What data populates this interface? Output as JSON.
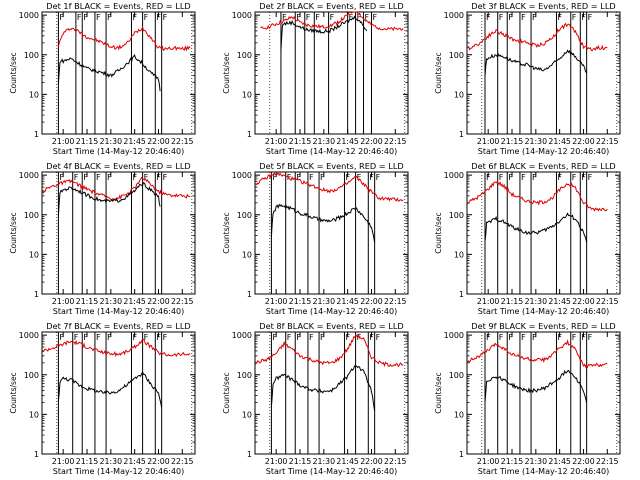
{
  "colors": {
    "events": "#000000",
    "lld": "#e00000",
    "axis": "#000000",
    "background": "#ffffff"
  },
  "shared": {
    "ylabel": "Counts/sec",
    "xlabel": "Start Time (14-May-12 20:46:40)",
    "x_tick_labels": [
      "21:00",
      "21:15",
      "21:30",
      "21:45",
      "22:00",
      "22:15"
    ],
    "y_tick_labels": [
      "1",
      "10",
      "100",
      "1000"
    ],
    "marker_label": "F"
  },
  "chart_data": [
    {
      "type": "line",
      "title": "Det 1f BLACK = Events, RED = LLD",
      "xlim": [
        "20:46:40",
        "22:23"
      ],
      "ylim": [
        1,
        1200
      ],
      "yscale": "log",
      "markers": [
        "20:57",
        "21:08",
        "21:12",
        "21:20",
        "21:27",
        "21:43",
        "21:50",
        "21:58",
        "22:02"
      ],
      "series": [
        {
          "name": "LLD",
          "color": "red",
          "x": [
            "20:57",
            "21:00",
            "21:05",
            "21:10",
            "21:15",
            "21:20",
            "21:25",
            "21:30",
            "21:35",
            "21:40",
            "21:45",
            "21:50",
            "21:55",
            "22:00",
            "22:05",
            "22:10",
            "22:15",
            "22:20"
          ],
          "y": [
            170,
            350,
            480,
            380,
            280,
            240,
            200,
            160,
            150,
            190,
            350,
            480,
            280,
            150,
            140,
            150,
            140,
            150
          ]
        },
        {
          "name": "Events",
          "color": "black",
          "x": [
            "20:57",
            "20:58",
            "21:00",
            "21:05",
            "21:10",
            "21:15",
            "21:20",
            "21:25",
            "21:30",
            "21:35",
            "21:40",
            "21:45",
            "21:50",
            "21:55",
            "22:00",
            "22:01"
          ],
          "y": [
            18,
            70,
            70,
            80,
            60,
            45,
            40,
            35,
            30,
            40,
            60,
            90,
            60,
            35,
            25,
            12
          ]
        }
      ]
    },
    {
      "type": "line",
      "title": "Det 2f BLACK = Events, RED = LLD",
      "xlim": [
        "20:46:40",
        "22:23"
      ],
      "ylim": [
        1,
        1200
      ],
      "yscale": "log",
      "markers": [
        "21:03",
        "21:12",
        "21:18",
        "21:24",
        "21:33",
        "21:45",
        "21:50",
        "21:55",
        "22:00"
      ],
      "series": [
        {
          "name": "LLD",
          "color": "red",
          "x": [
            "20:50",
            "20:55",
            "21:00",
            "21:05",
            "21:10",
            "21:15",
            "21:20",
            "21:25",
            "21:30",
            "21:35",
            "21:40",
            "21:45",
            "21:50",
            "21:55",
            "22:00",
            "22:05",
            "22:10",
            "22:15",
            "22:20"
          ],
          "y": [
            450,
            500,
            600,
            700,
            900,
            650,
            560,
            520,
            500,
            560,
            700,
            1000,
            1400,
            800,
            560,
            480,
            440,
            440,
            460
          ]
        },
        {
          "name": "Events",
          "color": "black",
          "x": [
            "21:03",
            "21:04",
            "21:10",
            "21:15",
            "21:20",
            "21:25",
            "21:30",
            "21:35",
            "21:40",
            "21:45",
            "21:50",
            "21:55",
            "21:57"
          ],
          "y": [
            120,
            600,
            650,
            500,
            420,
            400,
            380,
            420,
            550,
            700,
            900,
            550,
            400
          ]
        }
      ]
    },
    {
      "type": "line",
      "title": "Det 3f BLACK = Events, RED = LLD",
      "xlim": [
        "20:46:40",
        "22:23"
      ],
      "ylim": [
        1,
        1200
      ],
      "yscale": "log",
      "markers": [
        "20:58",
        "21:06",
        "21:12",
        "21:20",
        "21:27",
        "21:43",
        "21:52",
        "21:58",
        "22:02"
      ],
      "series": [
        {
          "name": "LLD",
          "color": "red",
          "x": [
            "20:47",
            "20:55",
            "21:00",
            "21:05",
            "21:10",
            "21:15",
            "21:20",
            "21:25",
            "21:30",
            "21:35",
            "21:40",
            "21:45",
            "21:50",
            "21:55",
            "22:00",
            "22:05",
            "22:10",
            "22:15"
          ],
          "y": [
            140,
            200,
            300,
            400,
            320,
            250,
            220,
            200,
            170,
            190,
            260,
            450,
            600,
            380,
            160,
            140,
            150,
            150
          ]
        },
        {
          "name": "Events",
          "color": "black",
          "x": [
            "20:58",
            "20:59",
            "21:05",
            "21:10",
            "21:15",
            "21:20",
            "21:25",
            "21:30",
            "21:35",
            "21:40",
            "21:45",
            "21:50",
            "21:55",
            "22:00",
            "22:02"
          ],
          "y": [
            30,
            80,
            100,
            90,
            70,
            60,
            55,
            45,
            40,
            55,
            80,
            130,
            90,
            50,
            35
          ]
        }
      ]
    },
    {
      "type": "line",
      "title": "Det 4f BLACK = Events, RED = LLD",
      "xlim": [
        "20:46:40",
        "22:23"
      ],
      "ylim": [
        1,
        1200
      ],
      "yscale": "log",
      "markers": [
        "20:57",
        "21:06",
        "21:12",
        "21:20",
        "21:27",
        "21:43",
        "21:50",
        "21:58",
        "22:02"
      ],
      "series": [
        {
          "name": "LLD",
          "color": "red",
          "x": [
            "20:47",
            "20:50",
            "20:55",
            "21:00",
            "21:05",
            "21:10",
            "21:15",
            "21:20",
            "21:25",
            "21:30",
            "21:35",
            "21:40",
            "21:45",
            "21:50",
            "21:55",
            "22:00",
            "22:05",
            "22:10",
            "22:15",
            "22:20"
          ],
          "y": [
            380,
            460,
            560,
            650,
            700,
            560,
            440,
            360,
            300,
            260,
            270,
            330,
            480,
            850,
            600,
            380,
            320,
            310,
            300,
            290
          ]
        },
        {
          "name": "Events",
          "color": "black",
          "x": [
            "20:57",
            "20:58",
            "21:00",
            "21:05",
            "21:10",
            "21:15",
            "21:20",
            "21:25",
            "21:30",
            "21:35",
            "21:40",
            "21:45",
            "21:50",
            "21:55",
            "22:00",
            "22:01"
          ],
          "y": [
            100,
            350,
            430,
            480,
            400,
            310,
            260,
            220,
            220,
            230,
            280,
            400,
            620,
            420,
            280,
            160
          ]
        }
      ]
    },
    {
      "type": "line",
      "title": "Det 5f BLACK = Events, RED = LLD",
      "xlim": [
        "20:46:40",
        "22:23"
      ],
      "ylim": [
        1,
        1200
      ],
      "yscale": "log",
      "markers": [
        "20:57",
        "21:06",
        "21:12",
        "21:20",
        "21:27",
        "21:43",
        "21:50",
        "21:58",
        "22:02"
      ],
      "series": [
        {
          "name": "LLD",
          "color": "red",
          "x": [
            "20:47",
            "20:55",
            "21:00",
            "21:05",
            "21:10",
            "21:15",
            "21:20",
            "21:25",
            "21:30",
            "21:35",
            "21:40",
            "21:45",
            "21:50",
            "21:55",
            "22:00",
            "22:05",
            "22:10",
            "22:15",
            "22:20"
          ],
          "y": [
            600,
            900,
            1100,
            950,
            800,
            700,
            600,
            500,
            420,
            400,
            480,
            620,
            900,
            600,
            380,
            260,
            250,
            240,
            240
          ]
        },
        {
          "name": "Events",
          "color": "black",
          "x": [
            "20:57",
            "20:58",
            "21:00",
            "21:05",
            "21:10",
            "21:15",
            "21:20",
            "21:25",
            "21:30",
            "21:35",
            "21:40",
            "21:45",
            "21:50",
            "21:55",
            "22:00",
            "22:02"
          ],
          "y": [
            30,
            100,
            160,
            170,
            140,
            110,
            95,
            80,
            70,
            70,
            85,
            110,
            150,
            90,
            50,
            20
          ]
        }
      ]
    },
    {
      "type": "line",
      "title": "Det 6f BLACK = Events, RED = LLD",
      "xlim": [
        "20:46:40",
        "22:23"
      ],
      "ylim": [
        1,
        1200
      ],
      "yscale": "log",
      "markers": [
        "20:58",
        "21:06",
        "21:12",
        "21:20",
        "21:27",
        "21:43",
        "21:52",
        "21:58",
        "22:02"
      ],
      "series": [
        {
          "name": "LLD",
          "color": "red",
          "x": [
            "20:47",
            "20:55",
            "21:00",
            "21:05",
            "21:10",
            "21:15",
            "21:20",
            "21:25",
            "21:30",
            "21:35",
            "21:40",
            "21:45",
            "21:50",
            "21:55",
            "22:00",
            "22:05",
            "22:10",
            "22:15"
          ],
          "y": [
            200,
            300,
            450,
            700,
            520,
            330,
            260,
            220,
            200,
            210,
            260,
            420,
            620,
            480,
            200,
            140,
            140,
            140
          ]
        },
        {
          "name": "Events",
          "color": "black",
          "x": [
            "20:58",
            "20:59",
            "21:05",
            "21:10",
            "21:15",
            "21:20",
            "21:25",
            "21:30",
            "21:35",
            "21:40",
            "21:45",
            "21:50",
            "21:55",
            "22:00",
            "22:02"
          ],
          "y": [
            20,
            60,
            80,
            65,
            50,
            40,
            35,
            35,
            40,
            50,
            70,
            100,
            80,
            35,
            20
          ]
        }
      ]
    },
    {
      "type": "line",
      "title": "Det 7f BLACK = Events, RED = LLD",
      "xlim": [
        "20:46:40",
        "22:23"
      ],
      "ylim": [
        1,
        1200
      ],
      "yscale": "log",
      "markers": [
        "20:57",
        "21:06",
        "21:12",
        "21:20",
        "21:27",
        "21:43",
        "21:50",
        "21:58",
        "22:02"
      ],
      "series": [
        {
          "name": "LLD",
          "color": "red",
          "x": [
            "20:47",
            "20:55",
            "21:00",
            "21:05",
            "21:10",
            "21:15",
            "21:20",
            "21:25",
            "21:30",
            "21:35",
            "21:40",
            "21:45",
            "21:50",
            "21:55",
            "22:00",
            "22:05",
            "22:10",
            "22:15",
            "22:20"
          ],
          "y": [
            400,
            500,
            600,
            700,
            620,
            500,
            420,
            370,
            340,
            330,
            380,
            500,
            750,
            520,
            360,
            320,
            320,
            330,
            330
          ]
        },
        {
          "name": "Events",
          "color": "black",
          "x": [
            "20:57",
            "20:58",
            "21:00",
            "21:05",
            "21:10",
            "21:15",
            "21:20",
            "21:25",
            "21:30",
            "21:35",
            "21:40",
            "21:45",
            "21:50",
            "21:55",
            "22:00",
            "22:02"
          ],
          "y": [
            20,
            70,
            80,
            75,
            55,
            45,
            40,
            35,
            35,
            40,
            55,
            80,
            110,
            60,
            35,
            15
          ]
        }
      ]
    },
    {
      "type": "line",
      "title": "Det 8f BLACK = Events, RED = LLD",
      "xlim": [
        "20:46:40",
        "22:23"
      ],
      "ylim": [
        1,
        1200
      ],
      "yscale": "log",
      "markers": [
        "20:57",
        "21:06",
        "21:12",
        "21:20",
        "21:27",
        "21:43",
        "21:50",
        "21:58",
        "22:02"
      ],
      "series": [
        {
          "name": "LLD",
          "color": "red",
          "x": [
            "20:47",
            "20:55",
            "21:00",
            "21:05",
            "21:10",
            "21:15",
            "21:20",
            "21:25",
            "21:30",
            "21:35",
            "21:40",
            "21:45",
            "21:50",
            "21:55",
            "22:00",
            "22:05",
            "22:10",
            "22:15",
            "22:20"
          ],
          "y": [
            200,
            250,
            350,
            600,
            450,
            300,
            260,
            220,
            200,
            200,
            260,
            450,
            1000,
            800,
            280,
            200,
            180,
            180,
            180
          ]
        },
        {
          "name": "Events",
          "color": "black",
          "x": [
            "20:57",
            "20:58",
            "21:00",
            "21:05",
            "21:10",
            "21:15",
            "21:20",
            "21:25",
            "21:30",
            "21:35",
            "21:40",
            "21:45",
            "21:50",
            "21:55",
            "22:00",
            "22:02"
          ],
          "y": [
            15,
            60,
            80,
            100,
            75,
            55,
            45,
            40,
            38,
            40,
            60,
            90,
            180,
            120,
            40,
            12
          ]
        }
      ]
    },
    {
      "type": "line",
      "title": "Det 9f BLACK = Events, RED = LLD",
      "xlim": [
        "20:46:40",
        "22:23"
      ],
      "ylim": [
        1,
        1200
      ],
      "yscale": "log",
      "markers": [
        "20:58",
        "21:06",
        "21:12",
        "21:20",
        "21:27",
        "21:43",
        "21:52",
        "21:58",
        "22:02"
      ],
      "series": [
        {
          "name": "LLD",
          "color": "red",
          "x": [
            "20:47",
            "20:55",
            "21:00",
            "21:05",
            "21:10",
            "21:15",
            "21:20",
            "21:25",
            "21:30",
            "21:35",
            "21:40",
            "21:45",
            "21:50",
            "21:55",
            "22:00",
            "22:05",
            "22:10",
            "22:15"
          ],
          "y": [
            220,
            300,
            420,
            600,
            460,
            330,
            280,
            250,
            230,
            240,
            300,
            480,
            650,
            420,
            170,
            170,
            180,
            190
          ]
        },
        {
          "name": "Events",
          "color": "black",
          "x": [
            "20:58",
            "20:59",
            "21:05",
            "21:10",
            "21:15",
            "21:20",
            "21:25",
            "21:30",
            "21:35",
            "21:40",
            "21:45",
            "21:50",
            "21:55",
            "22:00",
            "22:02"
          ],
          "y": [
            20,
            70,
            90,
            75,
            55,
            45,
            40,
            40,
            45,
            60,
            85,
            130,
            90,
            40,
            20
          ]
        }
      ]
    }
  ]
}
